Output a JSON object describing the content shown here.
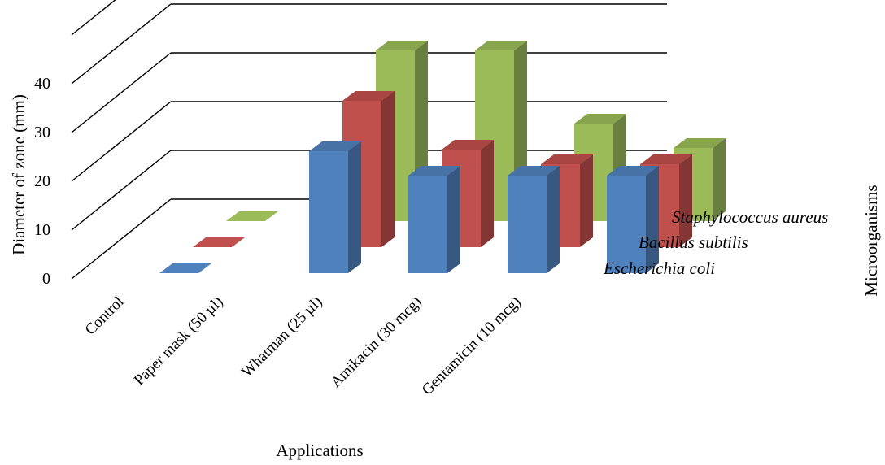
{
  "chart_data": {
    "type": "bar",
    "subtype": "3d-clustered-column",
    "categories": [
      "Control",
      "Paper mask (50 µl)",
      "Whatman (25 µl)",
      "Amikacin      (30 mcg)",
      "Gentamicin (10 mcg)"
    ],
    "series": [
      {
        "name": "Escherichia coli",
        "values": [
          0,
          25,
          20,
          20,
          20
        ],
        "color": "#4F81BD"
      },
      {
        "name": "Bacillus subtilis",
        "values": [
          0,
          30,
          20,
          17,
          17
        ],
        "color": "#C0504D"
      },
      {
        "name": "Staphylococcus aureus",
        "values": [
          0,
          35,
          35,
          20,
          15
        ],
        "color": "#9BBB59"
      }
    ],
    "title": "",
    "xlabel": "Applications",
    "ylabel": "Diameter of zone (mm)",
    "zlabel": "Microorganisms",
    "yticks": [
      0,
      10,
      20,
      30,
      40
    ],
    "ylim": [
      0,
      45
    ],
    "grid": true,
    "legend": "series labels along depth axis (right)"
  }
}
